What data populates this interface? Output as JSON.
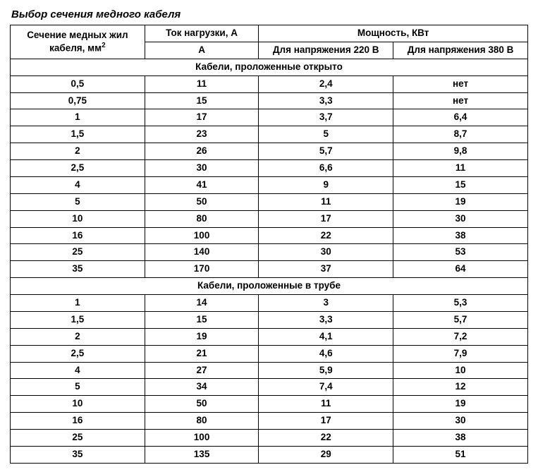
{
  "title": "Выбор сечения медного кабеля",
  "table": {
    "type": "table",
    "background_color": "#ffffff",
    "border_color": "#000000",
    "text_color": "#000000",
    "font_family": "Arial",
    "header_fontsize": 13.5,
    "cell_fontsize": 13.5,
    "column_widths_pct": [
      26,
      22,
      26,
      26
    ],
    "header": {
      "col1_line1": "Сечение медных жил",
      "col1_line2": "кабеля, мм",
      "col1_sup": "2",
      "col2_top": "Ток нагрузки, А",
      "col2_sub": "А",
      "power_top": "Мощность, КВт",
      "power_220": "Для напряжения 220 В",
      "power_380": "Для напряжения 380 В"
    },
    "sections": [
      {
        "label": "Кабели, проложенные открыто",
        "rows": [
          [
            "0,5",
            "11",
            "2,4",
            "нет"
          ],
          [
            "0,75",
            "15",
            "3,3",
            "нет"
          ],
          [
            "1",
            "17",
            "3,7",
            "6,4"
          ],
          [
            "1,5",
            "23",
            "5",
            "8,7"
          ],
          [
            "2",
            "26",
            "5,7",
            "9,8"
          ],
          [
            "2,5",
            "30",
            "6,6",
            "11"
          ],
          [
            "4",
            "41",
            "9",
            "15"
          ],
          [
            "5",
            "50",
            "11",
            "19"
          ],
          [
            "10",
            "80",
            "17",
            "30"
          ],
          [
            "16",
            "100",
            "22",
            "38"
          ],
          [
            "25",
            "140",
            "30",
            "53"
          ],
          [
            "35",
            "170",
            "37",
            "64"
          ]
        ]
      },
      {
        "label": "Кабели, проложенные в трубе",
        "rows": [
          [
            "1",
            "14",
            "3",
            "5,3"
          ],
          [
            "1,5",
            "15",
            "3,3",
            "5,7"
          ],
          [
            "2",
            "19",
            "4,1",
            "7,2"
          ],
          [
            "2,5",
            "21",
            "4,6",
            "7,9"
          ],
          [
            "4",
            "27",
            "5,9",
            "10"
          ],
          [
            "5",
            "34",
            "7,4",
            "12"
          ],
          [
            "10",
            "50",
            "11",
            "19"
          ],
          [
            "16",
            "80",
            "17",
            "30"
          ],
          [
            "25",
            "100",
            "22",
            "38"
          ],
          [
            "35",
            "135",
            "29",
            "51"
          ]
        ]
      }
    ]
  }
}
